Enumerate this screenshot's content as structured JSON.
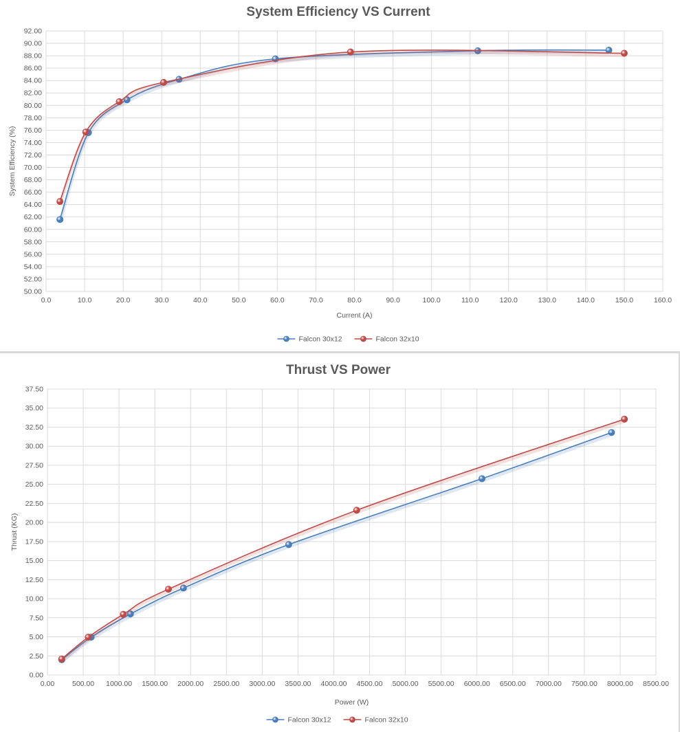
{
  "chart_data": [
    {
      "type": "line",
      "title": "System Efficiency VS Current",
      "xlabel": "Current (A)",
      "ylabel": "System Efficiency (%)",
      "xlim": [
        0,
        160
      ],
      "ylim": [
        50,
        92
      ],
      "x_ticks": [
        "0.0",
        "10.0",
        "20.0",
        "30.0",
        "40.0",
        "50.0",
        "60.0",
        "70.0",
        "80.0",
        "90.0",
        "100.0",
        "110.0",
        "120.0",
        "130.0",
        "140.0",
        "150.0",
        "160.0"
      ],
      "y_ticks": [
        "50.00",
        "52.00",
        "54.00",
        "56.00",
        "58.00",
        "60.00",
        "62.00",
        "64.00",
        "66.00",
        "68.00",
        "70.00",
        "72.00",
        "74.00",
        "76.00",
        "78.00",
        "80.00",
        "82.00",
        "84.00",
        "86.00",
        "88.00",
        "90.00",
        "92.00"
      ],
      "grid": true,
      "legend_position": "bottom",
      "smooth": true,
      "series": [
        {
          "name": "Falcon 30x12",
          "color": "#4a7ebb",
          "points": [
            [
              3.6,
              61.6
            ],
            [
              11.0,
              75.6
            ],
            [
              21.0,
              80.9
            ],
            [
              34.5,
              84.2
            ],
            [
              59.5,
              87.5
            ],
            [
              112.0,
              88.8
            ],
            [
              146.0,
              88.9
            ]
          ]
        },
        {
          "name": "Falcon 32x10",
          "color": "#be4b48",
          "points": [
            [
              3.6,
              64.5
            ],
            [
              10.3,
              75.7
            ],
            [
              19.0,
              80.6
            ],
            [
              30.5,
              83.7
            ],
            [
              79.0,
              88.6
            ],
            [
              150.0,
              88.4
            ]
          ]
        }
      ]
    },
    {
      "type": "line",
      "title": "Thrust VS Power",
      "xlabel": "Power (W)",
      "ylabel": "Thrust (KG)",
      "xlim": [
        0,
        8500
      ],
      "ylim": [
        0,
        37.5
      ],
      "x_ticks": [
        "0.00",
        "500.00",
        "1000.00",
        "1500.00",
        "2000.00",
        "2500.00",
        "3000.00",
        "3500.00",
        "4000.00",
        "4500.00",
        "5000.00",
        "5500.00",
        "6000.00",
        "6500.00",
        "7000.00",
        "7500.00",
        "8000.00",
        "8500.00"
      ],
      "y_ticks": [
        "0.00",
        "2.50",
        "5.00",
        "7.50",
        "10.00",
        "12.50",
        "15.00",
        "17.50",
        "20.00",
        "22.50",
        "25.00",
        "27.50",
        "30.00",
        "32.50",
        "35.00",
        "37.50"
      ],
      "grid": true,
      "legend_position": "bottom",
      "smooth": true,
      "series": [
        {
          "name": "Falcon 30x12",
          "color": "#4a7ebb",
          "points": [
            [
              200,
              2.0
            ],
            [
              610,
              4.95
            ],
            [
              1160,
              8.0
            ],
            [
              1900,
              11.4
            ],
            [
              3370,
              17.1
            ],
            [
              6070,
              25.75
            ],
            [
              7880,
              31.8
            ]
          ]
        },
        {
          "name": "Falcon 32x10",
          "color": "#be4b48",
          "points": [
            [
              200,
              2.1
            ],
            [
              570,
              4.95
            ],
            [
              1060,
              7.95
            ],
            [
              1690,
              11.25
            ],
            [
              4320,
              21.6
            ],
            [
              8060,
              33.55
            ]
          ]
        }
      ]
    }
  ]
}
